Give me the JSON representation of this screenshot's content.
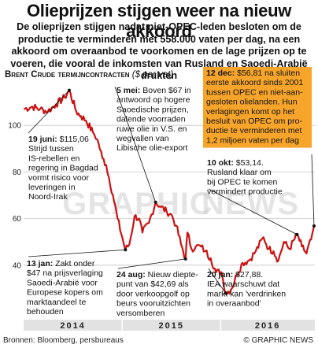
{
  "header": {
    "title": "Olieprijzen stijgen weer na nieuw akkoord",
    "intro": "De olieprijzen stijgen nadat niet-OPEC-leden besloten om de productie te verminderen met 558.000 vaten per dag, na een akkoord om overaanbod te voorkomen en de lage prijzen op te voeren, die vooral de inkomsten van Rusland en Saoedi-Arabië drukten"
  },
  "series_label": "Brent Crude termijncontracten",
  "series_unit": "($ per vat)",
  "watermark_left": "GRAPHIC",
  "watermark_right": "NEWS",
  "colors": {
    "background": "#ffffff",
    "line": "#cc1111",
    "grid": "#c8c8c8",
    "annotation_box": "#f7a52a",
    "pointer": "#111111",
    "year_band": "#e2e2e2"
  },
  "annotations": {
    "a1": [
      "19 juni: $115,06",
      "Strijd tussen",
      "IS-rebellen en",
      "regering in Bagdad",
      "vormt risico voor",
      "leveringen in",
      "Noord-Irak"
    ],
    "a2": [
      "5 mei: Boven $67 in",
      "antwoord op hogere",
      "Saoedische prijzen,",
      "dalende voorraden",
      "ruwe olie in V.S. en",
      "wegvallen van",
      "Libische olie-export"
    ],
    "a3": [
      "12 dec: $56,81 na sluiten",
      "eerste akkoord sinds 2001",
      "tussen OPEC en niet-aan-",
      "gesloten olielanden. Hun",
      "verlagingen komt op het",
      "besluit van OPEC om pro-",
      "ductie te verminderen met",
      "1,2 miljoen vaten per dag"
    ],
    "a4": [
      "10 okt: $53,14.",
      "Rusland klaar om",
      "bij OPEC te komen",
      "vermindert productie"
    ],
    "a5": [
      "13 jan: Zakt onder",
      "$47 na prijsverlaging",
      "Saoedi-Arabië voor",
      "Europese kopers om",
      "marktaandeel te",
      "behouden"
    ],
    "a6": [
      "24 aug: Nieuw diepte-",
      "punt van $42,69 als",
      "door verkoopgolf op",
      "beurs vooruitzichten",
      "versomberen"
    ],
    "a7": [
      "20 jan: $27,88.",
      "IEA waarschuwt dat",
      "markt kan 'verdrinken",
      "in overaanbod'"
    ]
  },
  "footer": {
    "sources": "Bronnen: Bloomberg, persbureaus",
    "credit": "© GRAPHIC NEWS"
  },
  "chart_data": {
    "type": "line",
    "title": "Brent Crude termijncontracten",
    "ylabel": "($ per vat)",
    "ylim": [
      20,
      120
    ],
    "xlim": [
      "2014-01-01",
      "2016-12-15"
    ],
    "yticks": [
      40,
      60,
      80,
      100
    ],
    "x_labels": [
      "2014",
      "2015",
      "2016"
    ],
    "grid": true,
    "series": [
      {
        "x": [
          "2014-01-02",
          "2014-02-03",
          "2014-03-03",
          "2014-04-01",
          "2014-05-01",
          "2014-06-02",
          "2014-06-19",
          "2014-07-15",
          "2014-08-01",
          "2014-08-20",
          "2014-09-15",
          "2014-10-01",
          "2014-10-20",
          "2014-11-03",
          "2014-11-28",
          "2014-12-15",
          "2015-01-13",
          "2015-01-28",
          "2015-02-16",
          "2015-03-05",
          "2015-03-17",
          "2015-04-10",
          "2015-05-05",
          "2015-05-25",
          "2015-06-15",
          "2015-07-01",
          "2015-07-20",
          "2015-08-07",
          "2015-08-24",
          "2015-08-31",
          "2015-09-15",
          "2015-10-01",
          "2015-10-20",
          "2015-11-05",
          "2015-11-25",
          "2015-12-15",
          "2016-01-04",
          "2016-01-20",
          "2016-02-11",
          "2016-03-01",
          "2016-03-22",
          "2016-04-15",
          "2016-05-10",
          "2016-06-08",
          "2016-06-27",
          "2016-07-15",
          "2016-08-02",
          "2016-08-22",
          "2016-09-12",
          "2016-10-10",
          "2016-10-28",
          "2016-11-14",
          "2016-12-01",
          "2016-12-12"
        ],
        "values": [
          107,
          108,
          107,
          106,
          109,
          112,
          115.06,
          106,
          104,
          102,
          97,
          94,
          86,
          83,
          70,
          60,
          46.6,
          49,
          61,
          60,
          54,
          58,
          67,
          65,
          63,
          62,
          57,
          49,
          42.69,
          54,
          47,
          48,
          48,
          46,
          43,
          37,
          37,
          27.88,
          30,
          36,
          41,
          42,
          46,
          52,
          47,
          46,
          42,
          50,
          47,
          53.14,
          48,
          45,
          51,
          56.81
        ]
      }
    ]
  }
}
